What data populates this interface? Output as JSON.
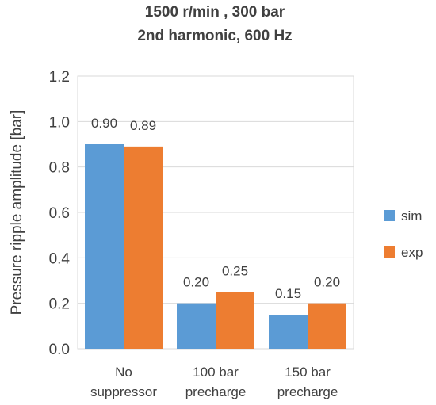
{
  "chart_data": {
    "type": "bar",
    "title": [
      "1500 r/min , 300 bar",
      "2nd harmonic, 600 Hz"
    ],
    "ylabel": "Pressure ripple amplitude [bar]",
    "xlabel": "",
    "categories": [
      [
        "No",
        "suppressor"
      ],
      [
        "100 bar",
        "precharge"
      ],
      [
        "150 bar",
        "precharge"
      ]
    ],
    "series": [
      {
        "name": "sim",
        "values": [
          0.9,
          0.2,
          0.15
        ],
        "labels": [
          "0.90",
          "0.20",
          "0.15"
        ],
        "color": "#5b9bd5"
      },
      {
        "name": "exp",
        "values": [
          0.89,
          0.25,
          0.2
        ],
        "labels": [
          "0.89",
          "0.25",
          "0.20"
        ],
        "color": "#ed7d31"
      }
    ],
    "ylim": [
      0,
      1.2
    ],
    "yticks": [
      "0.0",
      "0.2",
      "0.4",
      "0.6",
      "0.8",
      "1.0",
      "1.2"
    ],
    "grid": true,
    "legend_position": "right"
  }
}
